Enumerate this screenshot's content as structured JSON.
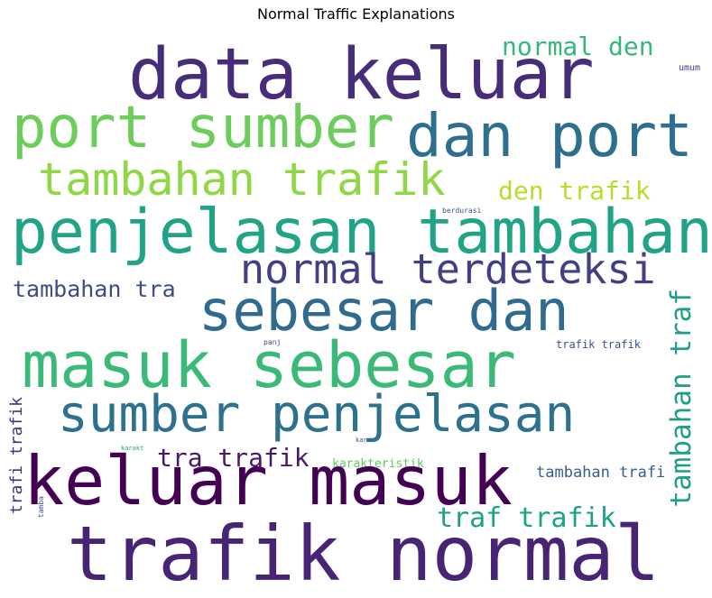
{
  "title": "Normal Traffic Explanations",
  "words": [
    {
      "text": "data keluar",
      "color": "#472c7a"
    },
    {
      "text": "normal den",
      "color": "#35b779"
    },
    {
      "text": "umum",
      "color": "#414487"
    },
    {
      "text": "port sumber",
      "color": "#6ccd5a"
    },
    {
      "text": "dan port",
      "color": "#2e6e8e"
    },
    {
      "text": "tambahan trafik",
      "color": "#8fd744"
    },
    {
      "text": "den trafik",
      "color": "#b5de2b"
    },
    {
      "text": "berdurasi",
      "color": "#3b528b"
    },
    {
      "text": "penjelasan tambahan",
      "color": "#20a386"
    },
    {
      "text": "normal terdeteksi",
      "color": "#433e85"
    },
    {
      "text": "tambahan tra",
      "color": "#3e4a89"
    },
    {
      "text": "sebesar dan",
      "color": "#306a8e"
    },
    {
      "text": "tambahan traf",
      "color": "#1f9e89"
    },
    {
      "text": "panj",
      "color": "#3e4989"
    },
    {
      "text": "trafik trafik",
      "color": "#3b528b"
    },
    {
      "text": "masuk sebesar",
      "color": "#3aba76"
    },
    {
      "text": "sumber penjelasan",
      "color": "#2c718e"
    },
    {
      "text": "trafi trafik",
      "color": "#46327e"
    },
    {
      "text": "karakt",
      "color": "#22a884"
    },
    {
      "text": "kar",
      "color": "#414487"
    },
    {
      "text": "tra trafik",
      "color": "#48186a"
    },
    {
      "text": "karakteristik",
      "color": "#5ec962"
    },
    {
      "text": "keluar masuk",
      "color": "#440154"
    },
    {
      "text": "tambahan trafi",
      "color": "#355f8d"
    },
    {
      "text": "tamba",
      "color": "#3b528b"
    },
    {
      "text": "traf trafik",
      "color": "#1fa088"
    },
    {
      "text": "trafik normal",
      "color": "#482475"
    }
  ]
}
